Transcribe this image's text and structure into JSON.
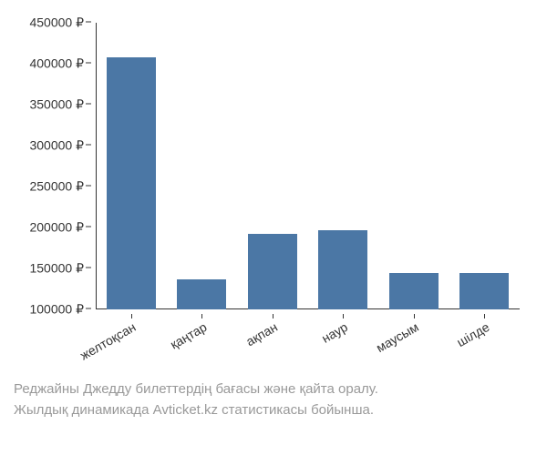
{
  "chart": {
    "type": "bar",
    "categories": [
      "желтоқсан",
      "қаңтар",
      "ақпан",
      "наур",
      "маусым",
      "шілде"
    ],
    "values": [
      408000,
      137000,
      192000,
      197000,
      145000,
      144000
    ],
    "bar_color": "#4b77a5",
    "background_color": "#ffffff",
    "axis_color": "#333333",
    "ylim": [
      100000,
      450000
    ],
    "ytick_step": 50000,
    "y_ticks": [
      100000,
      150000,
      200000,
      250000,
      300000,
      350000,
      400000,
      450000
    ],
    "y_tick_labels": [
      "100000 ₽",
      "150000 ₽",
      "200000 ₽",
      "250000 ₽",
      "300000 ₽",
      "350000 ₽",
      "400000 ₽",
      "450000 ₽"
    ],
    "bar_width_ratio": 0.7,
    "label_fontsize": 14,
    "x_label_rotation": -30
  },
  "caption": {
    "line1": "Реджайны Джедду билеттердің бағасы және қайта оралу.",
    "line2": "Жылдық динамикада Avticket.kz статистикасы бойынша.",
    "color": "#999999",
    "fontsize": 15
  }
}
